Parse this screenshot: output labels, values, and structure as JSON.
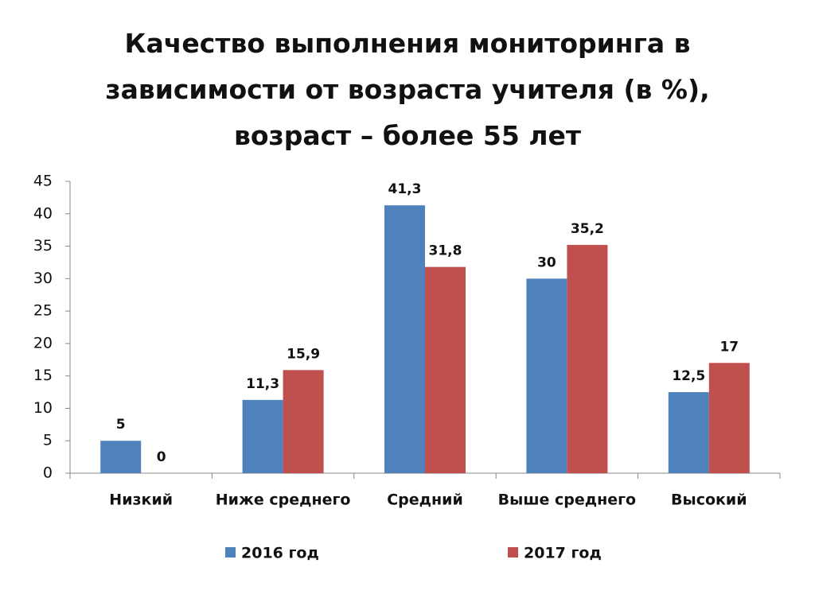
{
  "chart_data": {
    "type": "bar",
    "title": "Качество выполнения мониторинга в зависимости от возраста учителя (в %), возраст – более 55 лет",
    "categories": [
      "Низкий",
      "Ниже среднего",
      "Средний",
      "Выше среднего",
      "Высокий"
    ],
    "series": [
      {
        "name": "2016 год",
        "color": "#4f81bd",
        "values": [
          5,
          11.3,
          41.3,
          30,
          12.5
        ],
        "value_labels": [
          "5",
          "11,3",
          "41,3",
          "30",
          "12,5"
        ]
      },
      {
        "name": "2017 год",
        "color": "#c0504d",
        "values": [
          0,
          15.9,
          31.8,
          35.2,
          17
        ],
        "value_labels": [
          "0",
          "15,9",
          "31,8",
          "35,2",
          "17"
        ]
      }
    ],
    "ylim": [
      0,
      45
    ],
    "yticks": [
      0,
      5,
      10,
      15,
      20,
      25,
      30,
      35,
      40,
      45
    ],
    "grid": false,
    "legend": "bottom"
  }
}
